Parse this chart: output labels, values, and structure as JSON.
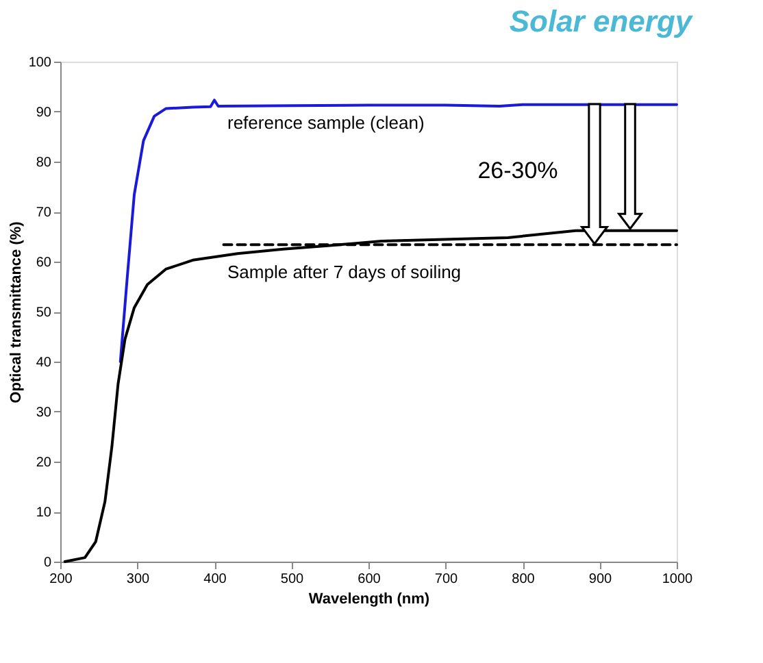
{
  "chart_data": {
    "type": "line",
    "title": "Solar energy",
    "xlabel": "Wavelength (nm)",
    "ylabel": "Optical transmittance (%)",
    "xlim": [
      200,
      1000
    ],
    "xticks": [
      200,
      300,
      400,
      500,
      600,
      700,
      800,
      900,
      {
        "value": 1000,
        "label": "1000"
      }
    ],
    "ylim": [
      0,
      100
    ],
    "yticks": [
      0,
      10,
      20,
      30,
      40,
      50,
      60,
      70,
      80,
      90,
      100
    ],
    "grid": false,
    "marker": "none",
    "series": [
      {
        "color": "#1a1ad8",
        "line_style": "solid",
        "x": [
          278,
          287,
          296,
          308,
          322,
          337,
          372,
          395,
          400,
          405,
          500,
          600,
          700,
          770,
          800,
          900,
          1000
        ],
        "values": [
          40,
          57,
          73.4,
          84.2,
          89.1,
          90.6,
          90.9,
          91,
          92.3,
          91.1,
          91.2,
          91.3,
          91.3,
          91.1,
          91.4,
          91.4,
          91.4
        ]
      },
      {
        "color": "#000000",
        "line_style": "solid",
        "x": [
          206,
          232,
          246,
          258,
          267,
          275,
          284,
          296,
          313,
          337,
          372,
          430,
          489,
          547,
          617,
          781,
          869,
          1000
        ],
        "values": [
          0,
          0.8,
          4,
          12,
          23,
          35.5,
          44.5,
          50.8,
          55.4,
          58.5,
          60.3,
          61.6,
          62.5,
          63.2,
          64.1,
          64.8,
          66.2,
          66.2
        ]
      },
      {
        "color": "#000000",
        "line_style": "dashed",
        "x": [
          412,
          1000
        ],
        "values": [
          63.4,
          63.4
        ]
      }
    ],
    "annotations": [
      "reference sample (clean)",
      "Sample after 7 days of soiling",
      "26-30%"
    ]
  }
}
